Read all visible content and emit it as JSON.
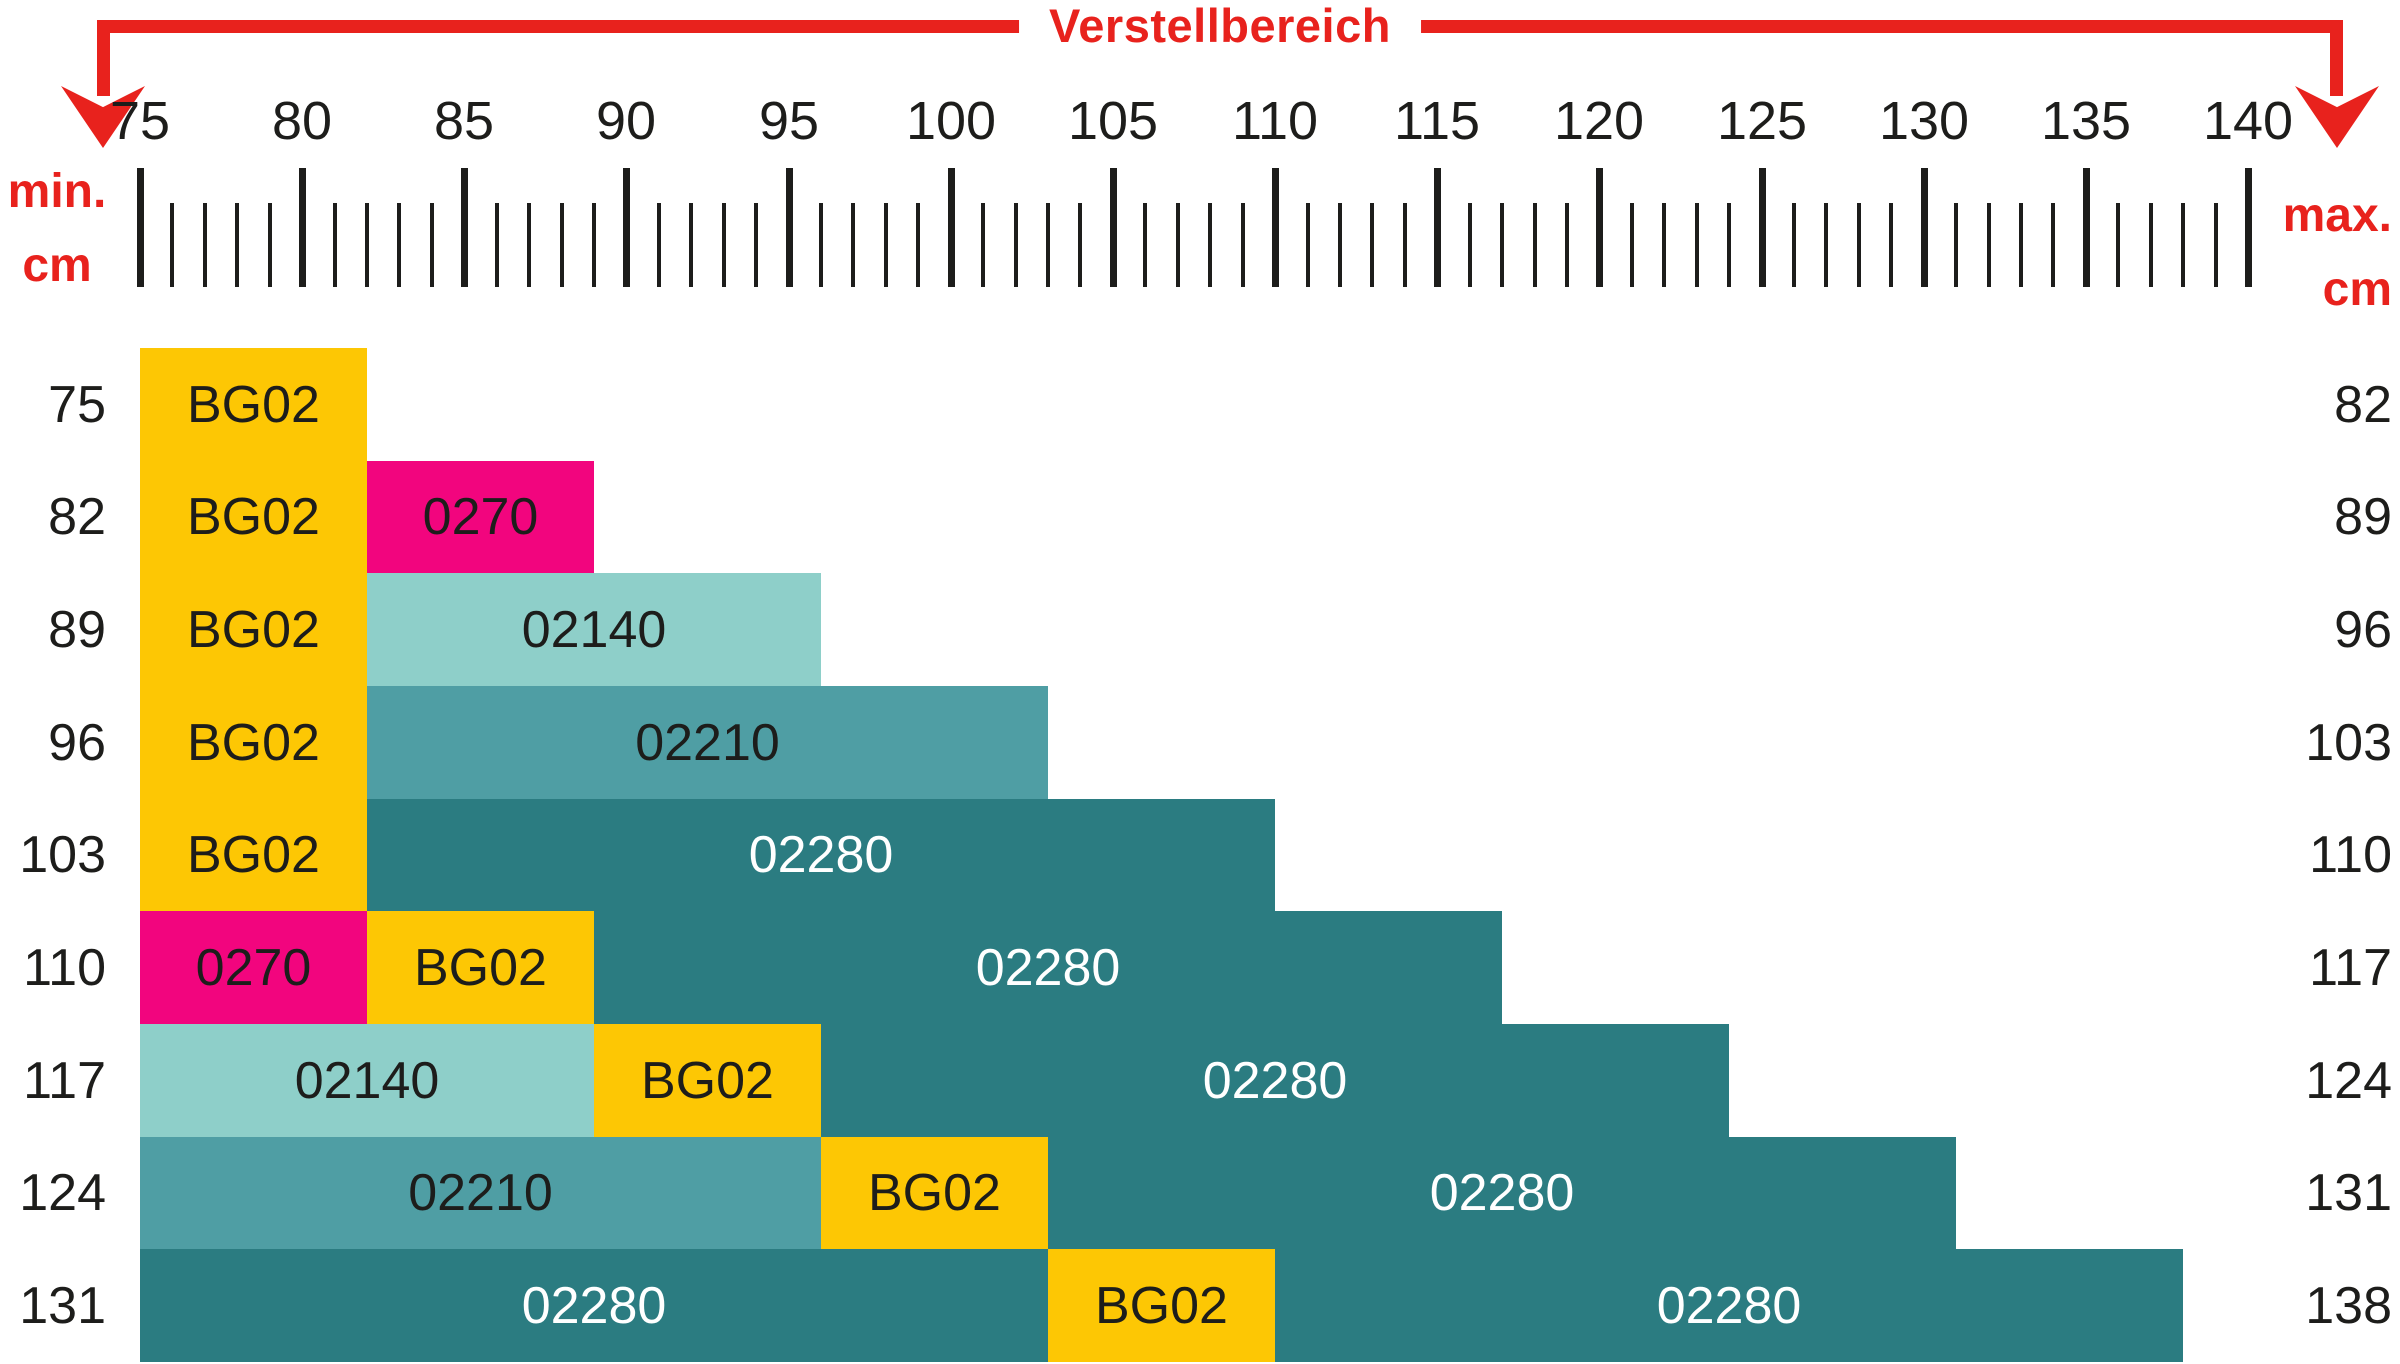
{
  "title": {
    "label": "Verstellbereich"
  },
  "axis_units": {
    "left": {
      "top": "min.",
      "bottom": "cm"
    },
    "right": {
      "top": "max.",
      "bottom": "cm"
    }
  },
  "colors": {
    "accent_red": "#e8221d",
    "text_ink": "#1d1d1b",
    "label_on_dark": "#ffffff",
    "BG02": "#fdc704",
    "0270": "#f2057e",
    "02140": "#8ecfc9",
    "02210": "#4f9ea4",
    "02280": "#2b7c81"
  },
  "chart_data": {
    "type": "bar",
    "subtype": "horizontal-stacked-to-scale",
    "title": "Verstellbereich",
    "unit": "cm",
    "axis": {
      "min": 75,
      "max": 140,
      "major_step": 5,
      "minor_step": 1,
      "position": "top"
    },
    "tick_labels": [
      "75",
      "80",
      "85",
      "90",
      "95",
      "100",
      "105",
      "110",
      "115",
      "120",
      "125",
      "130",
      "135",
      "140"
    ],
    "light_label_codes": [
      "02280"
    ],
    "rows": [
      {
        "min": "75",
        "max": "82",
        "segments": [
          {
            "code": "BG02",
            "from": 75,
            "to": 82
          }
        ]
      },
      {
        "min": "82",
        "max": "89",
        "segments": [
          {
            "code": "BG02",
            "from": 75,
            "to": 82
          },
          {
            "code": "0270",
            "from": 82,
            "to": 89
          }
        ]
      },
      {
        "min": "89",
        "max": "96",
        "segments": [
          {
            "code": "BG02",
            "from": 75,
            "to": 82
          },
          {
            "code": "02140",
            "from": 82,
            "to": 96
          }
        ]
      },
      {
        "min": "96",
        "max": "103",
        "segments": [
          {
            "code": "BG02",
            "from": 75,
            "to": 82
          },
          {
            "code": "02210",
            "from": 82,
            "to": 103
          }
        ]
      },
      {
        "min": "103",
        "max": "110",
        "segments": [
          {
            "code": "BG02",
            "from": 75,
            "to": 82
          },
          {
            "code": "02280",
            "from": 82,
            "to": 110
          }
        ]
      },
      {
        "min": "110",
        "max": "117",
        "segments": [
          {
            "code": "0270",
            "from": 75,
            "to": 82
          },
          {
            "code": "BG02",
            "from": 82,
            "to": 89
          },
          {
            "code": "02280",
            "from": 89,
            "to": 117
          }
        ]
      },
      {
        "min": "117",
        "max": "124",
        "segments": [
          {
            "code": "02140",
            "from": 75,
            "to": 89
          },
          {
            "code": "BG02",
            "from": 89,
            "to": 96
          },
          {
            "code": "02280",
            "from": 96,
            "to": 124
          }
        ]
      },
      {
        "min": "124",
        "max": "131",
        "segments": [
          {
            "code": "02210",
            "from": 75,
            "to": 96
          },
          {
            "code": "BG02",
            "from": 96,
            "to": 103
          },
          {
            "code": "02280",
            "from": 103,
            "to": 131
          }
        ]
      },
      {
        "min": "131",
        "max": "138",
        "segments": [
          {
            "code": "02280",
            "from": 75,
            "to": 103
          },
          {
            "code": "BG02",
            "from": 103,
            "to": 110
          },
          {
            "code": "02280",
            "from": 110,
            "to": 138
          }
        ]
      }
    ]
  }
}
